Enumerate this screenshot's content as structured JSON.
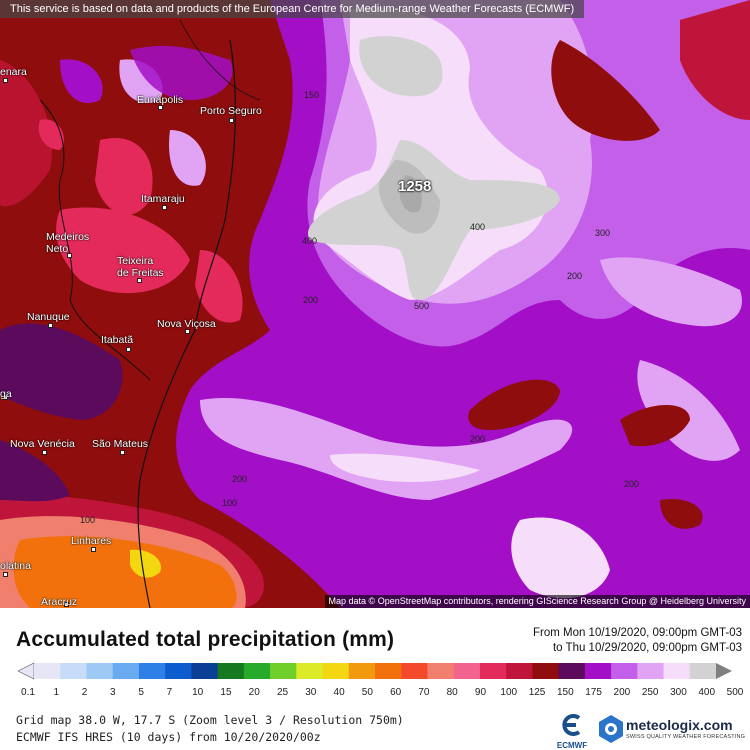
{
  "map": {
    "banner": "This service is based on data and products of the European Centre for Medium-range Weather Forecasts (ECMWF)",
    "attribution": "Map data © OpenStreetMap contributors, rendering GIScience Research Group @ Heidelberg University",
    "max_value": "1258",
    "cities": [
      {
        "name": "enara"
      },
      {
        "name": "Eunápolis"
      },
      {
        "name": "Porto Seguro"
      },
      {
        "name": "Itamaraju"
      },
      {
        "name": "Medeiros\nNeto"
      },
      {
        "name": "Teixeira\nde Freitas"
      },
      {
        "name": "Nanuque"
      },
      {
        "name": "Nova Viçosa"
      },
      {
        "name": "Itabatã"
      },
      {
        "name": "ga"
      },
      {
        "name": "Nova Venécia"
      },
      {
        "name": "São Mateus"
      },
      {
        "name": "Linhares"
      },
      {
        "name": "olatina"
      },
      {
        "name": "Aracruz"
      }
    ],
    "contour_labels": [
      "150",
      "400",
      "400",
      "300",
      "200",
      "500",
      "200",
      "200",
      "200",
      "200",
      "100",
      "100"
    ]
  },
  "title": "Accumulated total precipitation (mm)",
  "period": {
    "from": "From Mon 10/19/2020, 09:00pm GMT-03",
    "to": "to Thu 10/29/2020, 09:00pm GMT-03"
  },
  "legend": {
    "labels": [
      "0.1",
      "1",
      "2",
      "3",
      "5",
      "7",
      "10",
      "15",
      "20",
      "25",
      "30",
      "40",
      "50",
      "60",
      "70",
      "80",
      "90",
      "100",
      "125",
      "150",
      "175",
      "200",
      "250",
      "300",
      "400",
      "500"
    ],
    "colors": [
      "#e6e6f7",
      "#c6dcf9",
      "#9ec9f5",
      "#6aaaf0",
      "#2e7fe6",
      "#0c5ccd",
      "#0b3e95",
      "#157a1f",
      "#27a92a",
      "#70cf2a",
      "#dcea27",
      "#f2d711",
      "#f29a0e",
      "#f2710d",
      "#f44a2b",
      "#f0806d",
      "#f2648e",
      "#e42a5b",
      "#c0153b",
      "#8f0d0d",
      "#5c0a5c",
      "#a20fc6",
      "#c35fe8",
      "#e1a4f5",
      "#f6ddfa",
      "#d2d2d2"
    ]
  },
  "footer": {
    "line1": "Grid map 38.0 W, 17.7 S (Zoom level 3 / Resolution 750m)",
    "line2": "ECMWF IFS HRES (10 days) from 10/20/2020/00z"
  },
  "logos": {
    "ecmwf": "ECMWF",
    "meteologix_name": "meteologix.com",
    "meteologix_tagline": "SWISS QUALITY WEATHER FORECASTING"
  }
}
